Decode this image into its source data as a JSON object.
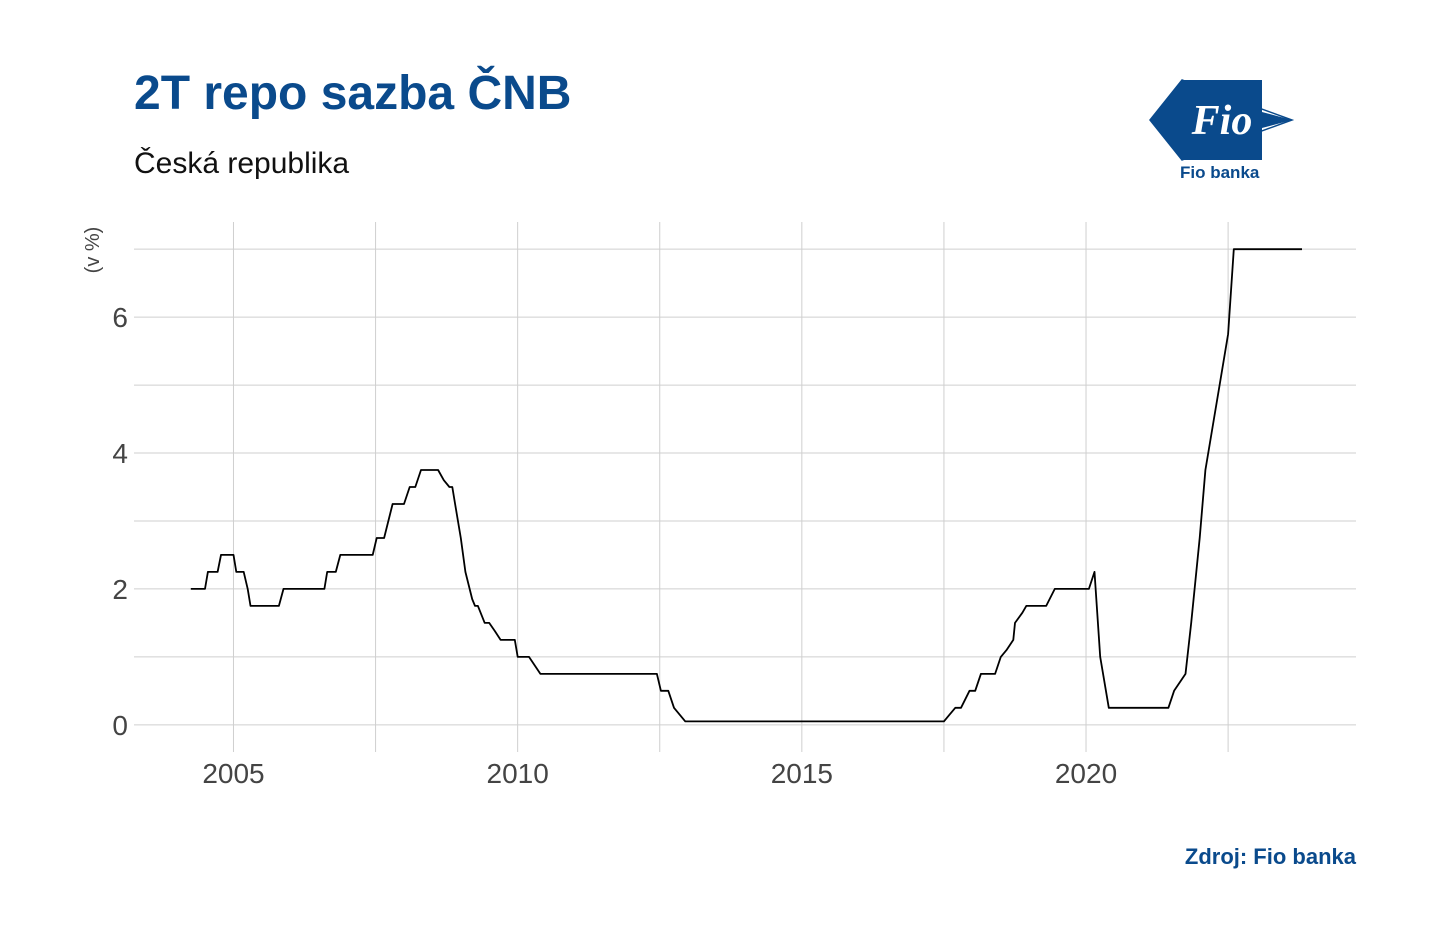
{
  "header": {
    "title": "2T repo sazba ČNB",
    "subtitle": "Česká republika"
  },
  "logo": {
    "wordmark": "Fio",
    "caption": "Fio banka"
  },
  "footer": {
    "source": "Zdroj: Fio banka"
  },
  "colors": {
    "brand": "#0a4a8c",
    "line": "#000000",
    "grid": "#cfcfcf",
    "tick": "#444444"
  },
  "chart_data": {
    "type": "line",
    "title": "2T repo sazba ČNB",
    "subtitle": "Česká republika",
    "xlabel": "",
    "ylabel": "(v %)",
    "xlim": [
      2003.25,
      2024.75
    ],
    "ylim": [
      -0.4,
      7.4
    ],
    "x_ticks": [
      2005,
      2010,
      2015,
      2020
    ],
    "y_ticks": [
      0,
      2,
      4,
      6
    ],
    "grid": true,
    "legend": "none",
    "series": [
      {
        "name": "",
        "points": [
          [
            2004.25,
            2.0
          ],
          [
            2004.5,
            2.0
          ],
          [
            2004.55,
            2.25
          ],
          [
            2004.72,
            2.25
          ],
          [
            2004.78,
            2.5
          ],
          [
            2004.95,
            2.5
          ],
          [
            2005.0,
            2.5
          ],
          [
            2005.05,
            2.25
          ],
          [
            2005.18,
            2.25
          ],
          [
            2005.25,
            2.0
          ],
          [
            2005.3,
            1.75
          ],
          [
            2005.55,
            1.75
          ],
          [
            2005.8,
            1.75
          ],
          [
            2005.88,
            2.0
          ],
          [
            2006.2,
            2.0
          ],
          [
            2006.6,
            2.0
          ],
          [
            2006.65,
            2.25
          ],
          [
            2006.8,
            2.25
          ],
          [
            2006.88,
            2.5
          ],
          [
            2007.2,
            2.5
          ],
          [
            2007.45,
            2.5
          ],
          [
            2007.52,
            2.75
          ],
          [
            2007.65,
            2.75
          ],
          [
            2007.8,
            3.25
          ],
          [
            2008.0,
            3.25
          ],
          [
            2008.1,
            3.5
          ],
          [
            2008.2,
            3.5
          ],
          [
            2008.3,
            3.75
          ],
          [
            2008.6,
            3.75
          ],
          [
            2008.7,
            3.6
          ],
          [
            2008.8,
            3.5
          ],
          [
            2008.85,
            3.5
          ],
          [
            2008.9,
            3.25
          ],
          [
            2009.0,
            2.75
          ],
          [
            2009.08,
            2.25
          ],
          [
            2009.2,
            1.85
          ],
          [
            2009.25,
            1.75
          ],
          [
            2009.3,
            1.75
          ],
          [
            2009.42,
            1.5
          ],
          [
            2009.5,
            1.5
          ],
          [
            2009.6,
            1.38
          ],
          [
            2009.7,
            1.25
          ],
          [
            2009.95,
            1.25
          ],
          [
            2010.0,
            1.0
          ],
          [
            2010.2,
            1.0
          ],
          [
            2010.4,
            0.75
          ],
          [
            2011.0,
            0.75
          ],
          [
            2012.0,
            0.75
          ],
          [
            2012.45,
            0.75
          ],
          [
            2012.52,
            0.5
          ],
          [
            2012.65,
            0.5
          ],
          [
            2012.75,
            0.25
          ],
          [
            2012.95,
            0.05
          ],
          [
            2014.0,
            0.05
          ],
          [
            2016.0,
            0.05
          ],
          [
            2017.5,
            0.05
          ],
          [
            2017.6,
            0.15
          ],
          [
            2017.7,
            0.25
          ],
          [
            2017.8,
            0.25
          ],
          [
            2017.95,
            0.5
          ],
          [
            2018.05,
            0.5
          ],
          [
            2018.15,
            0.75
          ],
          [
            2018.4,
            0.75
          ],
          [
            2018.5,
            1.0
          ],
          [
            2018.6,
            1.1
          ],
          [
            2018.72,
            1.25
          ],
          [
            2018.75,
            1.5
          ],
          [
            2018.88,
            1.65
          ],
          [
            2018.95,
            1.75
          ],
          [
            2019.3,
            1.75
          ],
          [
            2019.45,
            2.0
          ],
          [
            2019.9,
            2.0
          ],
          [
            2020.05,
            2.0
          ],
          [
            2020.15,
            2.25
          ],
          [
            2020.25,
            1.0
          ],
          [
            2020.4,
            0.25
          ],
          [
            2021.0,
            0.25
          ],
          [
            2021.45,
            0.25
          ],
          [
            2021.55,
            0.5
          ],
          [
            2021.75,
            0.75
          ],
          [
            2021.85,
            1.5
          ],
          [
            2022.0,
            2.75
          ],
          [
            2022.1,
            3.75
          ],
          [
            2022.25,
            4.5
          ],
          [
            2022.35,
            5.0
          ],
          [
            2022.5,
            5.75
          ],
          [
            2022.6,
            7.0
          ],
          [
            2023.0,
            7.0
          ],
          [
            2023.8,
            7.0
          ]
        ]
      }
    ]
  }
}
